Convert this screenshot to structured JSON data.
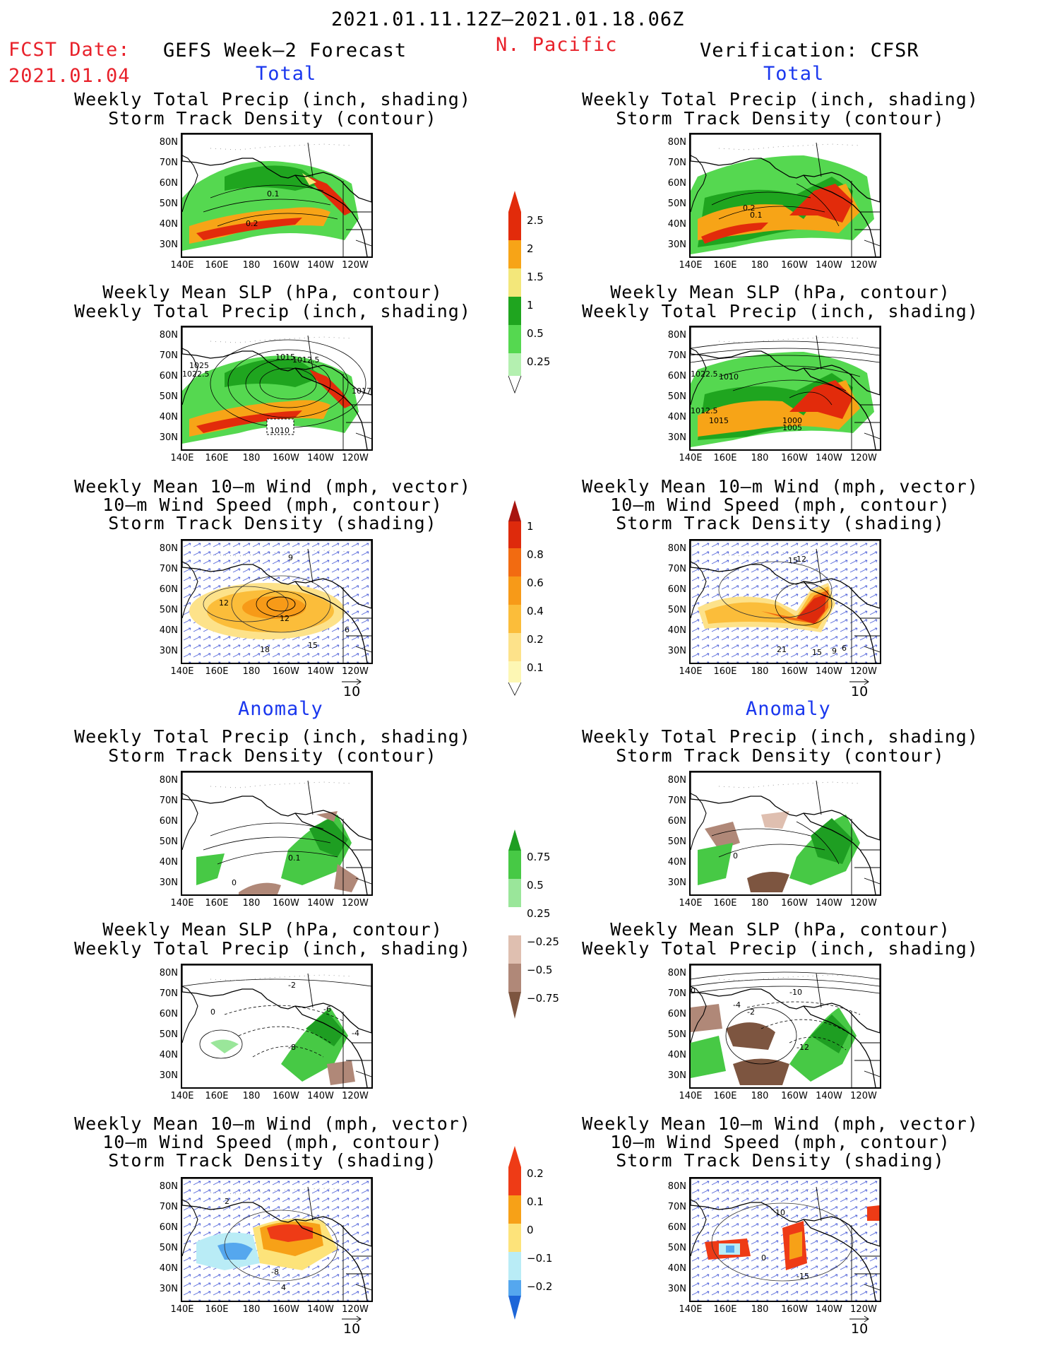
{
  "header": {
    "period": "2021.01.11.12Z–2021.01.18.06Z",
    "fcst_label": "FCST Date:",
    "fcst_date": "2021.01.04",
    "forecast_title": "GEFS Week–2 Forecast",
    "region": "N. Pacific",
    "verification": "Verification: CFSR"
  },
  "sections": {
    "total": "Total",
    "anomaly": "Anomaly"
  },
  "titles": {
    "precip_storm": [
      "Weekly Total Precip (inch, shading)",
      "Storm Track Density (contour)"
    ],
    "slp_precip": [
      "Weekly Mean SLP (hPa, contour)",
      "Weekly Total Precip (inch, shading)"
    ],
    "wind_storm": [
      "Weekly Mean 10–m Wind (mph, vector)",
      "10–m Wind Speed (mph, contour)",
      "Storm Track Density (shading)"
    ]
  },
  "axes": {
    "lat_labels": [
      "80N",
      "70N",
      "60N",
      "50N",
      "40N",
      "30N"
    ],
    "lon_labels": [
      "140E",
      "160E",
      "180",
      "160W",
      "140W",
      "120W"
    ]
  },
  "vector_ref": "10",
  "colorbars": {
    "precip_total": {
      "labels": [
        "0.25",
        "0.5",
        "1",
        "1.5",
        "2",
        "2.5"
      ],
      "colors": [
        "#b4f0b0",
        "#55d850",
        "#1fa51f",
        "#f3e77a",
        "#f7a417",
        "#e22b0b"
      ]
    },
    "density_total": {
      "labels": [
        "0.1",
        "0.2",
        "0.4",
        "0.6",
        "0.8",
        "1"
      ],
      "colors": [
        "#fdf7b4",
        "#fde28a",
        "#fbbd3a",
        "#f79a18",
        "#f26b11",
        "#de2a0c",
        "#a8140f"
      ]
    },
    "precip_anom": {
      "labels": [
        "0.75",
        "0.5",
        "0.25",
        "−0.25",
        "−0.5",
        "−0.75"
      ],
      "colors": [
        "#1e9e22",
        "#47c945",
        "#9ae69a",
        "#ffffff",
        "#dfbfb0",
        "#b08878",
        "#7d5540"
      ]
    },
    "density_anom": {
      "labels": [
        "0.2",
        "0.1",
        "0",
        "−0.1",
        "−0.2"
      ],
      "colors": [
        "#ee3b16",
        "#f7a117",
        "#fde37a",
        "#b9ecf6",
        "#55a7ee",
        "#1d66d8"
      ]
    }
  },
  "contour_labels": {
    "fc_precip": [
      "0.1",
      "0.2"
    ],
    "ver_precip": [
      "0.2",
      "0.1"
    ],
    "fc_slp": [
      "1025",
      "1022.5",
      "1015",
      "1012.5",
      "1017",
      "1010"
    ],
    "ver_slp": [
      "1022.5",
      "1010",
      "1012.5",
      "1015",
      "1000",
      "1005"
    ],
    "fc_wind": [
      "9",
      "12",
      "12",
      "18",
      "15",
      "6"
    ],
    "ver_wind": [
      "15",
      "12",
      "21",
      "15",
      "9",
      "6"
    ],
    "fc_anom_precip": [
      "0.1",
      "0"
    ],
    "ver_anom_precip": [
      "0"
    ],
    "fc_anom_slp": [
      "-2",
      "-6",
      "-8",
      "0",
      "-4"
    ],
    "ver_anom_slp": [
      "0",
      "-10",
      "-2",
      "-4",
      "-12"
    ],
    "fc_anom_wind": [
      "2",
      "-8",
      "4"
    ],
    "ver_anom_wind": [
      "10",
      "-15",
      "0"
    ]
  }
}
